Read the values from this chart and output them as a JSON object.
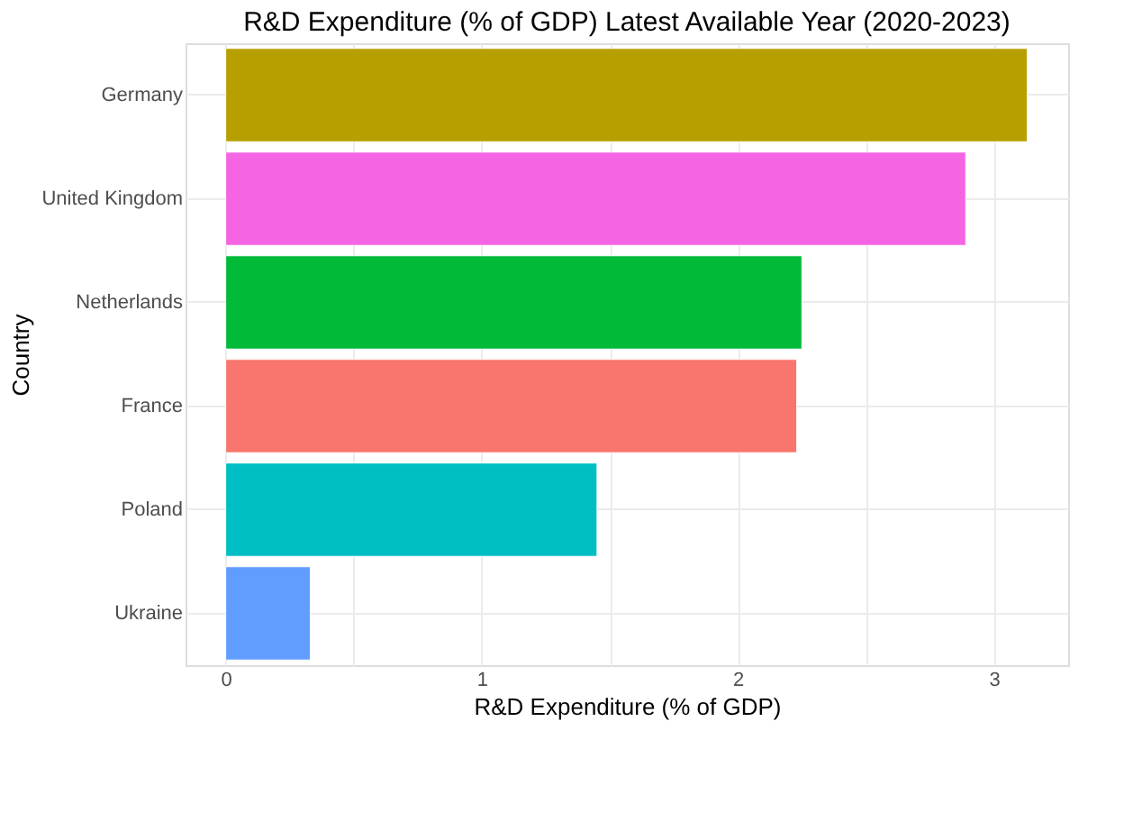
{
  "chart_data": {
    "type": "bar",
    "orientation": "horizontal",
    "title": "R&D Expenditure (% of GDP) Latest Available Year (2020-2023)",
    "xlabel": "R&D Expenditure (% of GDP)",
    "ylabel": "Country",
    "categories": [
      "Germany",
      "United Kingdom",
      "Netherlands",
      "France",
      "Poland",
      "Ukraine"
    ],
    "values": [
      3.13,
      2.89,
      2.25,
      2.23,
      1.45,
      0.33
    ],
    "colors": [
      "#b79f00",
      "#f564e3",
      "#00ba38",
      "#f8766d",
      "#00bfc4",
      "#619cff"
    ],
    "xlim": [
      -0.157,
      3.29
    ],
    "xticks": [
      0,
      {
        "value": 0.5,
        "label": null
      },
      1,
      {
        "value": 1.5,
        "label": null
      },
      2,
      {
        "value": 2.5,
        "label": null
      },
      3
    ],
    "grid": true
  }
}
